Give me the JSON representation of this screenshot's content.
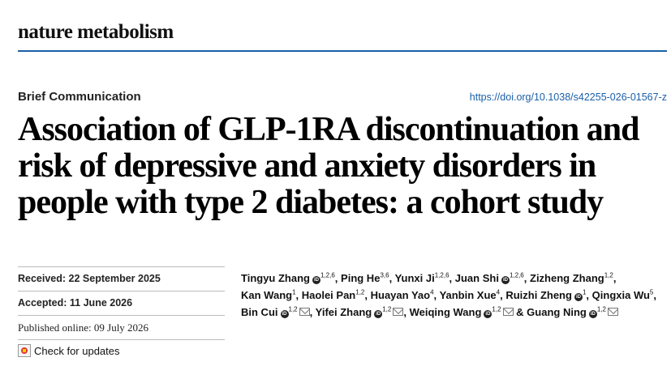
{
  "journal": "nature metabolism",
  "article_type": "Brief Communication",
  "doi": "https://doi.org/10.1038/s42255-026-01567-z",
  "title": "Association of GLP-1RA discontinuation and risk of depressive and anxiety disorders in people with type 2 diabetes: a cohort study",
  "dates": {
    "received_label": "Received:",
    "received": "22 September 2025",
    "accepted_label": "Accepted:",
    "accepted": "11 June 2026",
    "published_label": "Published online:",
    "published": "09 July 2026"
  },
  "check_updates": "Check for updates",
  "authors": [
    {
      "name": "Tingyu Zhang",
      "orcid": true,
      "aff": "1,2,6",
      "mail": false,
      "sep": ","
    },
    {
      "name": "Ping He",
      "orcid": false,
      "aff": "3,6",
      "mail": false,
      "sep": ","
    },
    {
      "name": "Yunxi Ji",
      "orcid": false,
      "aff": "1,2,6",
      "mail": false,
      "sep": ","
    },
    {
      "name": "Juan Shi",
      "orcid": true,
      "aff": "1,2,6",
      "mail": false,
      "sep": ","
    },
    {
      "name": "Zizheng Zhang",
      "orcid": false,
      "aff": "1,2",
      "mail": false,
      "sep": ","
    },
    {
      "name": "Kan Wang",
      "orcid": false,
      "aff": "1",
      "mail": false,
      "sep": ","
    },
    {
      "name": "Haolei Pan",
      "orcid": false,
      "aff": "1,2",
      "mail": false,
      "sep": ","
    },
    {
      "name": "Huayan Yao",
      "orcid": false,
      "aff": "4",
      "mail": false,
      "sep": ","
    },
    {
      "name": "Yanbin Xue",
      "orcid": false,
      "aff": "4",
      "mail": false,
      "sep": ","
    },
    {
      "name": "Ruizhi Zheng",
      "orcid": true,
      "aff": "1",
      "mail": false,
      "sep": ","
    },
    {
      "name": "Qingxia Wu",
      "orcid": false,
      "aff": "5",
      "mail": false,
      "sep": ","
    },
    {
      "name": "Bin Cui",
      "orcid": true,
      "aff": "1,2",
      "mail": true,
      "sep": ","
    },
    {
      "name": "Yifei Zhang",
      "orcid": true,
      "aff": "1,2",
      "mail": true,
      "sep": ","
    },
    {
      "name": "Weiqing Wang",
      "orcid": true,
      "aff": "1,2",
      "mail": true,
      "sep": " &"
    },
    {
      "name": "Guang Ning",
      "orcid": true,
      "aff": "1,2",
      "mail": true,
      "sep": ""
    }
  ],
  "colors": {
    "accent": "#1a5fa8",
    "text": "#111111"
  }
}
